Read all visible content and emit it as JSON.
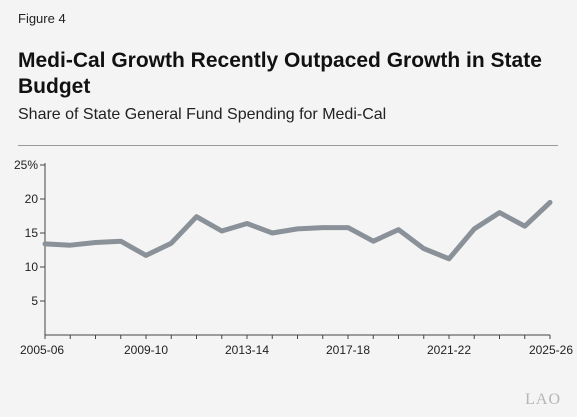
{
  "figure_label": "Figure 4",
  "title": "Medi-Cal Growth Recently Outpaced Growth in State Budget",
  "subtitle": "Share of State General Fund Spending for Medi-Cal",
  "logo_text": "LAO",
  "colors": {
    "line": "#8a9199",
    "axis": "#444444",
    "rule": "#9a9a9a",
    "background": "#f4f4f4"
  },
  "chart_data": {
    "type": "line",
    "title": "Medi-Cal Growth Recently Outpaced Growth in State Budget",
    "subtitle": "Share of State General Fund Spending for Medi-Cal",
    "xlabel": "",
    "ylabel": "",
    "x": [
      "2005-06",
      "2006-07",
      "2007-08",
      "2008-09",
      "2009-10",
      "2010-11",
      "2011-12",
      "2012-13",
      "2013-14",
      "2014-15",
      "2015-16",
      "2016-17",
      "2017-18",
      "2018-19",
      "2019-20",
      "2020-21",
      "2021-22",
      "2022-23",
      "2023-24",
      "2024-25",
      "2025-26"
    ],
    "x_tick_labels": [
      "2005-06",
      "2009-10",
      "2013-14",
      "2017-18",
      "2021-22",
      "2025-26"
    ],
    "y_tick_labels": [
      "5",
      "10",
      "15",
      "20",
      "25%"
    ],
    "y_ticks": [
      5,
      10,
      15,
      20,
      25
    ],
    "ylim": [
      0,
      25
    ],
    "grid": false,
    "series": [
      {
        "values": [
          13.4,
          13.2,
          13.6,
          13.8,
          11.7,
          13.5,
          17.4,
          15.3,
          16.4,
          15.0,
          15.6,
          15.8,
          15.8,
          13.8,
          15.5,
          12.7,
          11.2,
          15.6,
          18.0,
          16.0,
          19.5
        ]
      }
    ]
  }
}
